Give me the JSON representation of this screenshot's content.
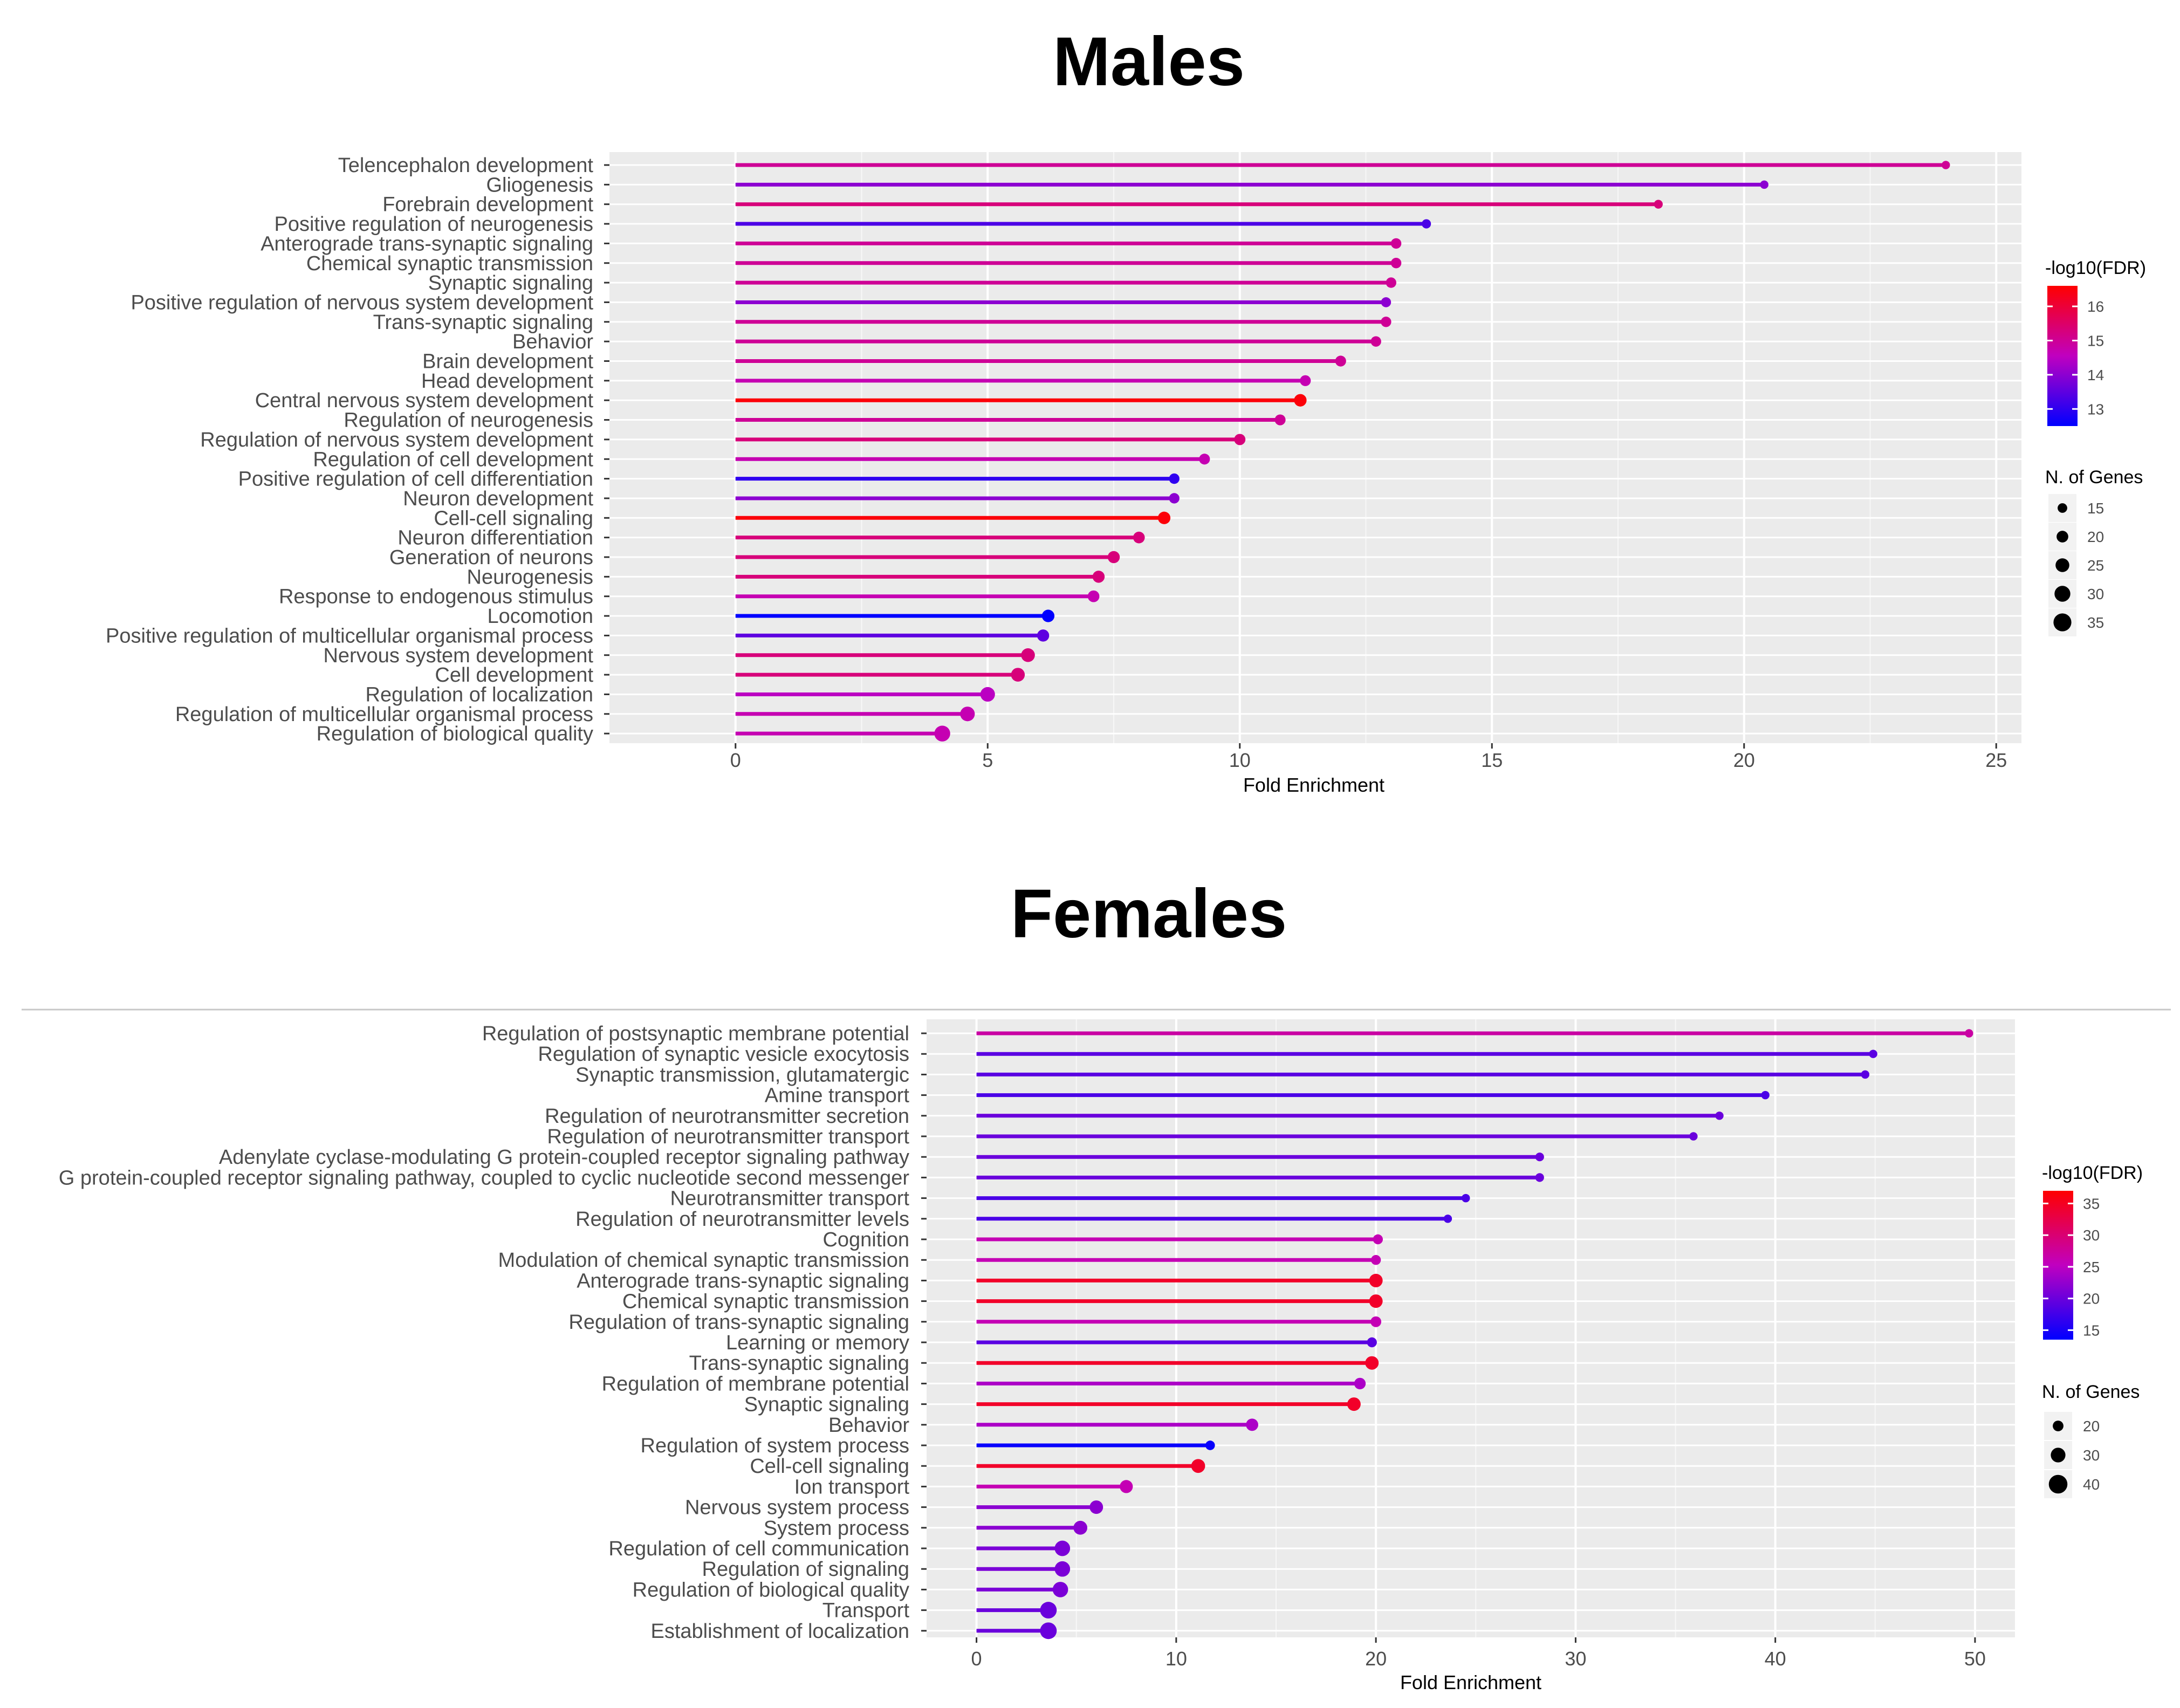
{
  "chart_data": [
    {
      "type": "lollipop",
      "title": "Males",
      "xlabel": "Fold Enrichment",
      "ylabel": "",
      "xlim": [
        -2.5,
        25.5
      ],
      "xticks": [
        0,
        5,
        10,
        15,
        20,
        25
      ],
      "color_legend": {
        "title": "-log10(FDR)",
        "ticks": [
          13,
          14,
          15,
          16
        ],
        "range": [
          12.5,
          16.6
        ],
        "low_color": "#0000ff",
        "high_color": "#ff0000"
      },
      "size_legend": {
        "title": "N. of Genes",
        "ticks": [
          15,
          20,
          25,
          30,
          35
        ]
      },
      "categories": [
        "Telencephalon development",
        "Gliogenesis",
        "Forebrain development",
        "Positive regulation of neurogenesis",
        "Anterograde trans-synaptic signaling",
        "Chemical synaptic transmission",
        "Synaptic signaling",
        "Positive regulation of nervous system development",
        "Trans-synaptic signaling",
        "Behavior",
        "Brain development",
        "Head development",
        "Central nervous system development",
        "Regulation of neurogenesis",
        "Regulation of nervous system development",
        "Regulation of cell development",
        "Positive regulation of cell differentiation",
        "Neuron development",
        "Cell-cell signaling",
        "Neuron differentiation",
        "Generation of neurons",
        "Neurogenesis",
        "Response to endogenous stimulus",
        "Locomotion",
        "Positive regulation of multicellular organismal process",
        "Nervous system development",
        "Cell development",
        "Regulation of localization",
        "Regulation of multicellular organismal process",
        "Regulation of biological quality"
      ],
      "values": [
        24.0,
        20.4,
        18.3,
        13.7,
        13.1,
        13.1,
        13.0,
        12.9,
        12.9,
        12.7,
        12.0,
        11.3,
        11.2,
        10.8,
        10.0,
        9.3,
        8.7,
        8.7,
        8.5,
        8.0,
        7.5,
        7.2,
        7.1,
        6.2,
        6.1,
        5.8,
        5.6,
        5.0,
        4.6,
        4.1
      ],
      "log10_fdr": [
        15.0,
        14.0,
        15.3,
        13.3,
        15.0,
        15.0,
        15.0,
        14.0,
        15.0,
        15.0,
        15.0,
        14.7,
        16.5,
        15.0,
        15.3,
        14.7,
        13.0,
        14.0,
        16.5,
        15.3,
        15.3,
        15.3,
        14.7,
        12.5,
        13.5,
        15.3,
        15.3,
        14.5,
        14.7,
        14.7
      ],
      "n_genes": [
        12,
        12,
        13,
        14,
        17,
        17,
        17,
        16,
        17,
        17,
        18,
        18,
        22,
        18,
        19,
        18,
        17,
        17,
        22,
        20,
        21,
        21,
        20,
        22,
        21,
        25,
        25,
        27,
        27,
        30
      ]
    },
    {
      "type": "lollipop",
      "title": "Females",
      "xlabel": "Fold Enrichment",
      "ylabel": "",
      "xlim": [
        -2.5,
        52.0
      ],
      "xticks": [
        0,
        10,
        20,
        30,
        40,
        50
      ],
      "color_legend": {
        "title": "-log10(FDR)",
        "ticks": [
          15,
          20,
          25,
          30,
          35
        ],
        "range": [
          13.5,
          37.0
        ],
        "low_color": "#0000ff",
        "high_color": "#ff0000"
      },
      "size_legend": {
        "title": "N. of Genes",
        "ticks": [
          20,
          30,
          40
        ]
      },
      "categories": [
        "Regulation of postsynaptic membrane potential",
        "Regulation of synaptic vesicle exocytosis",
        "Synaptic transmission, glutamatergic",
        "Amine transport",
        "Regulation of neurotransmitter secretion",
        "Regulation of neurotransmitter transport",
        "Adenylate cyclase-modulating G protein-coupled receptor signaling pathway",
        "G protein-coupled receptor signaling pathway, coupled to cyclic nucleotide second messenger",
        "Neurotransmitter transport",
        "Regulation of neurotransmitter levels",
        "Cognition",
        "Modulation of chemical synaptic transmission",
        "Anterograde trans-synaptic signaling",
        "Chemical synaptic transmission",
        "Regulation of trans-synaptic signaling",
        "Learning or memory",
        "Trans-synaptic signaling",
        "Regulation of membrane potential",
        "Synaptic signaling",
        "Behavior",
        "Regulation of system process",
        "Cell-cell signaling",
        "Ion transport",
        "Nervous system process",
        "System process",
        "Regulation of cell communication",
        "Regulation of signaling",
        "Regulation of biological quality",
        "Transport",
        "Establishment of localization"
      ],
      "values": [
        49.7,
        44.9,
        44.5,
        39.5,
        37.2,
        35.9,
        28.2,
        28.2,
        24.5,
        23.6,
        20.1,
        20.0,
        20.0,
        20.0,
        20.0,
        19.8,
        19.8,
        19.2,
        18.9,
        13.8,
        11.7,
        11.1,
        7.5,
        6.0,
        5.2,
        4.3,
        4.3,
        4.2,
        3.6,
        3.6
      ],
      "log10_fdr": [
        27.0,
        19.0,
        19.0,
        18.0,
        20.0,
        20.0,
        20.0,
        20.0,
        18.0,
        18.0,
        26.0,
        26.0,
        34.5,
        34.5,
        26.0,
        19.0,
        34.5,
        24.0,
        34.5,
        24.0,
        14.0,
        34.5,
        26.0,
        22.0,
        22.0,
        21.0,
        21.0,
        21.0,
        20.0,
        20.0
      ],
      "n_genes": [
        14,
        14,
        14,
        14,
        14,
        14,
        15,
        15,
        14,
        14,
        18,
        18,
        27,
        27,
        20,
        18,
        27,
        22,
        27,
        24,
        17,
        28,
        26,
        27,
        28,
        32,
        32,
        32,
        35,
        35
      ]
    }
  ]
}
